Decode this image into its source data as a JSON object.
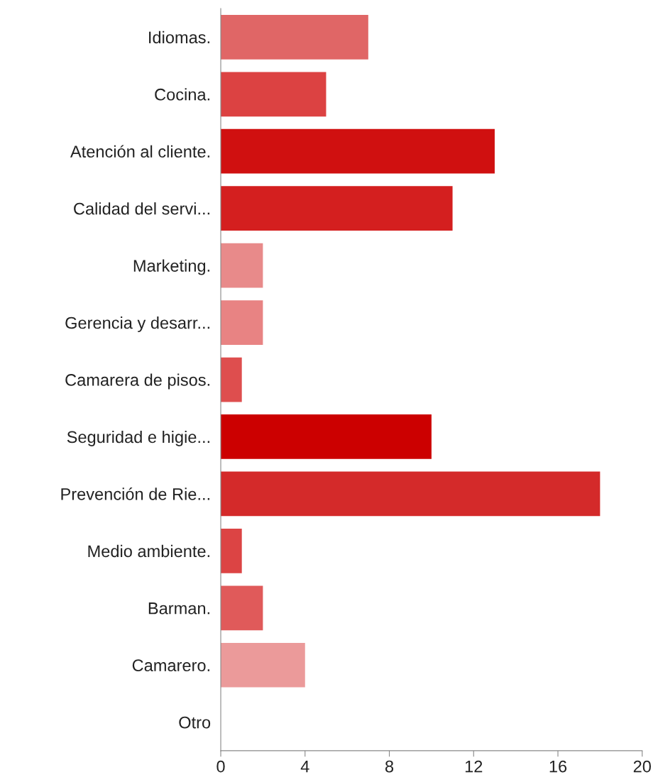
{
  "chart_data": {
    "type": "bar",
    "orientation": "horizontal",
    "categories": [
      "Idiomas.",
      "Cocina.",
      "Atención al cliente.",
      "Calidad del servi...",
      "Marketing.",
      "Gerencia y desarr...",
      "Camarera de pisos.",
      "Seguridad e higie...",
      "Prevención de Rie...",
      "Medio ambiente.",
      "Barman.",
      "Camarero.",
      "Otro"
    ],
    "values": [
      7,
      5,
      13,
      11,
      2,
      2,
      1,
      10,
      18,
      1,
      2,
      4,
      0
    ],
    "colors": [
      "#e06666",
      "#dc4242",
      "#d01010",
      "#d41f1f",
      "#e88a8a",
      "#e88383",
      "#de4e4e",
      "#cc0000",
      "#d42a2a",
      "#dc4444",
      "#e05a5a",
      "#eb9a9a",
      "#e0e0e0"
    ],
    "xlim": [
      0,
      20
    ],
    "xticks": [
      0,
      4,
      8,
      12,
      16,
      20
    ],
    "grid": false
  }
}
